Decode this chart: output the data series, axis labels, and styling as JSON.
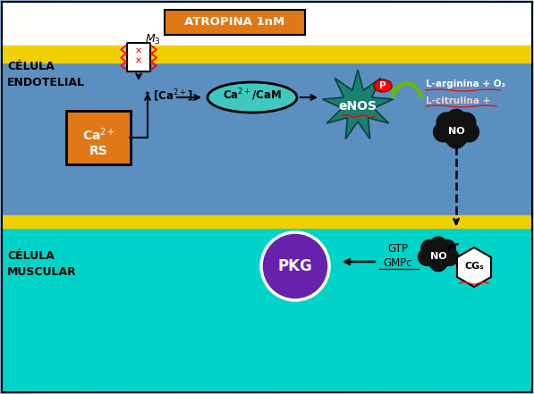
{
  "fig_width": 5.97,
  "fig_height": 4.41,
  "dpi": 100,
  "yellow_band": "#f0d000",
  "white_band": "#ffffff",
  "atropina_box_color": "#e07818",
  "atropina_text": "ATROPINA 1nM",
  "ca_rs_box_color": "#e07818",
  "cam_ellipse_color": "#40c8c0",
  "enos_color": "#1a7a6e",
  "enos_text": "eNOS",
  "pkg_circle_color": "#6622aa",
  "endothelial_bg": "#5b90c0",
  "muscular_bg": "#00d4c8",
  "bg_left": "#8aaad0",
  "bg_right": "#c0d8f0",
  "endothelial_label": "CÉLULA\nENDOTELIAL",
  "muscular_label": "CÉLULA\nMUSCULAR",
  "m3_label": "M₃",
  "ca_label": "↑[Ca²⁺]ᵢ",
  "l_arginina_text": "L-arginina + O₂",
  "l_citrulina_text": "L-citrulina +",
  "gtp_text": "GTP",
  "gmpc_text": "GMPc",
  "no_text": "NO",
  "pkg_text": "PKG",
  "cgs_text": "CGₛ",
  "p_text": "P"
}
